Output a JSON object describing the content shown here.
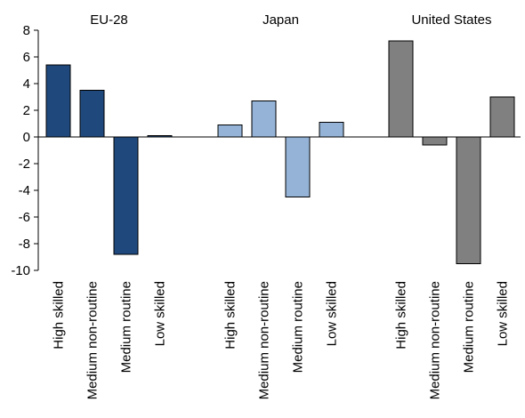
{
  "chart_data": {
    "type": "bar",
    "ylim": [
      -10,
      8
    ],
    "yticks": [
      -10,
      -8,
      -6,
      -4,
      -2,
      0,
      2,
      4,
      6,
      8
    ],
    "grid": false,
    "legend": "none",
    "groups": [
      {
        "name": "EU-28",
        "color": "#1f497d",
        "categories": [
          "High skilled",
          "Medium non-routine",
          "Medium routine",
          "Low skilled"
        ],
        "values": [
          5.4,
          3.5,
          -8.8,
          0.1
        ]
      },
      {
        "name": "Japan",
        "color": "#95b3d7",
        "categories": [
          "High skilled",
          "Medium non-routine",
          "Medium routine",
          "Low skilled"
        ],
        "values": [
          0.9,
          2.7,
          -4.5,
          1.1
        ]
      },
      {
        "name": "United States",
        "color": "#808080",
        "categories": [
          "High skilled",
          "Medium non-routine",
          "Medium routine",
          "Low skilled"
        ],
        "values": [
          7.2,
          -0.6,
          -9.5,
          3.0
        ]
      }
    ]
  }
}
